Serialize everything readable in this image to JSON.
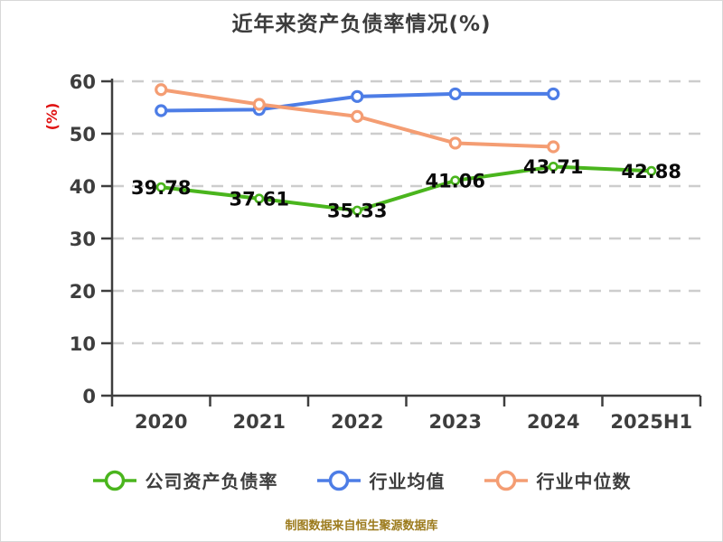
{
  "title": "近年来资产负债率情况(%)",
  "footer": "制图数据来自恒生聚源数据库",
  "colors": {
    "company": "#4ab51d",
    "industry_mean": "#4d7de6",
    "industry_median": "#f49d73",
    "axis_text": "#3e3e3e",
    "grid": "#cdcdcd",
    "ylabel_red": "#e01212",
    "footer_gold": "#9c7b1d"
  },
  "chart_data": {
    "type": "line",
    "title": "近年来资产负债率情况(%)",
    "ylabel": "(%)",
    "xlabel": "",
    "categories": [
      "2020",
      "2021",
      "2022",
      "2023",
      "2024",
      "2025H1"
    ],
    "ylim": [
      0,
      60
    ],
    "ytick_step": 10,
    "grid": "horizontal-dashed",
    "legend_position": "bottom",
    "series": [
      {
        "name": "公司资产负债率",
        "color": "#4ab51d",
        "show_point_labels": true,
        "values": [
          39.78,
          37.61,
          35.33,
          41.06,
          43.71,
          42.88
        ]
      },
      {
        "name": "行业均值",
        "color": "#4d7de6",
        "show_point_labels": false,
        "values": [
          54.4,
          54.6,
          57.1,
          57.6,
          57.6,
          null
        ]
      },
      {
        "name": "行业中位数",
        "color": "#f49d73",
        "show_point_labels": false,
        "values": [
          58.4,
          55.6,
          53.3,
          48.2,
          47.5,
          null
        ]
      }
    ]
  }
}
